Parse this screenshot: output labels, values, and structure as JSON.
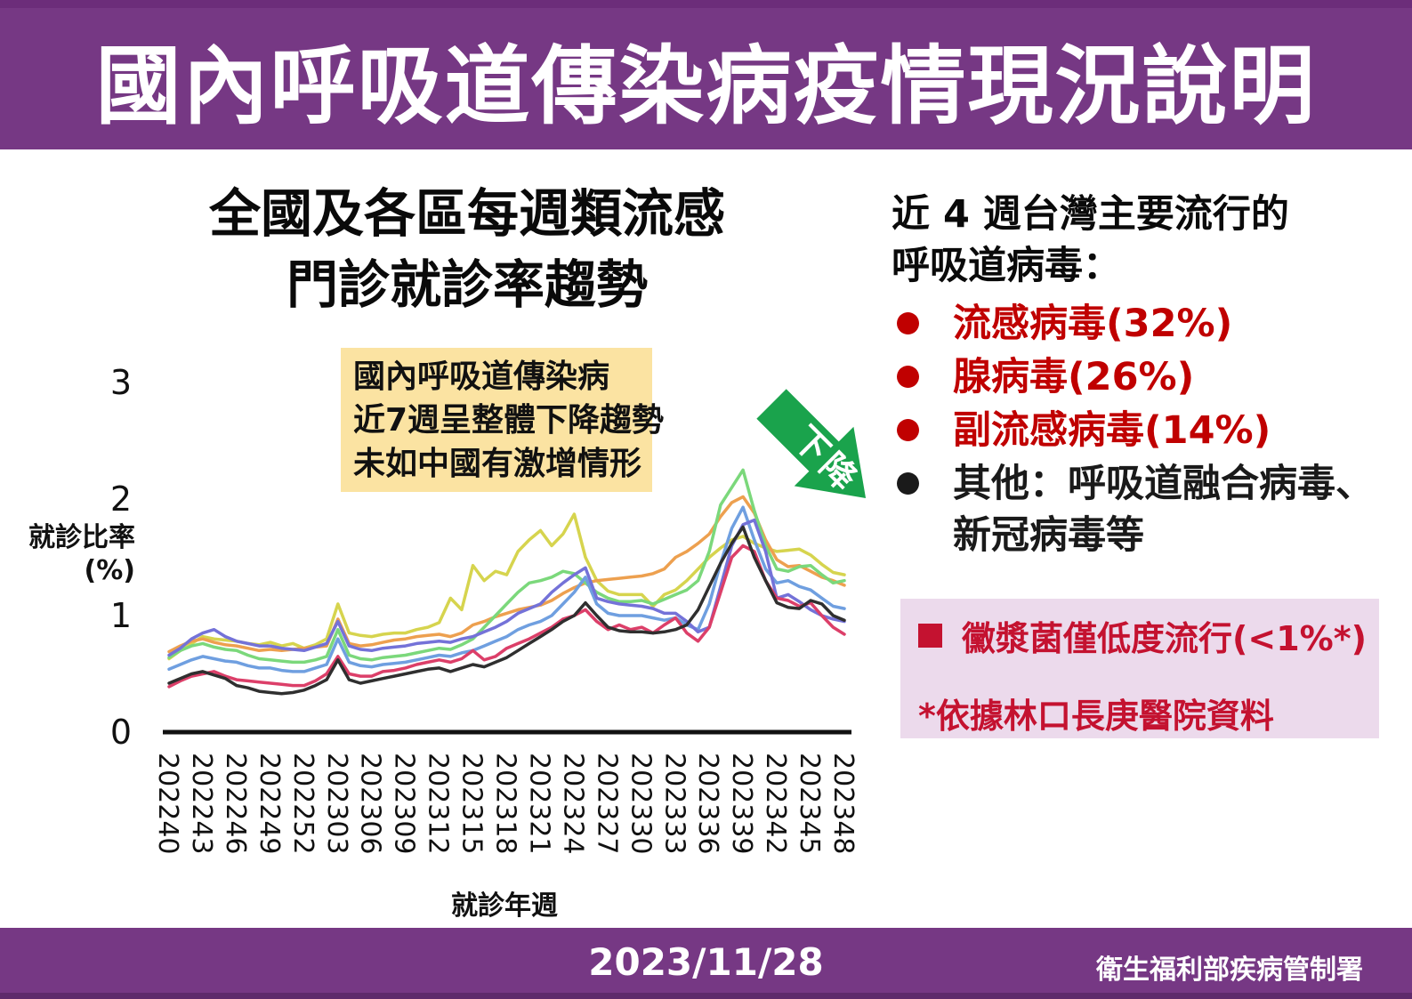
{
  "header": {
    "title": "國內呼吸道傳染病疫情現況說明"
  },
  "chart_section": {
    "title_line1": "全國及各區每週類流感",
    "title_line2": "門診就診率趨勢",
    "y_axis_title_line1": "就診比率",
    "y_axis_title_line2": "(%)",
    "annotation": {
      "line1": "國內呼吸道傳染病",
      "line2": "近7週呈整體下降趨勢",
      "line3": "未如中國有激增情形",
      "bg_color": "#fbe3a2"
    },
    "arrow_label": "下降",
    "arrow_color": "#1aa34c"
  },
  "right_panel": {
    "heading_line1": "近 4 週台灣主要流行的",
    "heading_line2": "呼吸道病毒：",
    "bullets": [
      {
        "label": "流感病毒(32%)",
        "color": "#c00000",
        "dot_color": "#c00000"
      },
      {
        "label": "腺病毒(26%)",
        "color": "#c00000",
        "dot_color": "#c00000"
      },
      {
        "label": "副流感病毒(14%)",
        "color": "#c00000",
        "dot_color": "#c00000"
      },
      {
        "label": "其他：呼吸道融合病毒、",
        "label_line2": "新冠病毒等",
        "color": "#1a1a1a",
        "dot_color": "#1a1a1a"
      }
    ],
    "note_box": {
      "line1": "黴漿菌僅低度流行(<1%*)",
      "line2": "*依據林口長庚醫院資料",
      "text_color": "#c41230",
      "bg_color": "#ecdaec"
    }
  },
  "footer": {
    "date": "2023/11/28",
    "agency": "衛生福利部疾病管制署"
  },
  "chart_data": {
    "type": "line",
    "title": "全國及各區每週類流感門診就診率趨勢",
    "xlabel": "就診年週",
    "ylabel": "就診比率(%)",
    "ylim": [
      0,
      3
    ],
    "yticks": [
      0,
      1,
      2,
      3
    ],
    "grid": false,
    "legend_position": "none",
    "x_tick_step": 3,
    "x": [
      "202240",
      "202241",
      "202242",
      "202243",
      "202244",
      "202245",
      "202246",
      "202247",
      "202248",
      "202249",
      "202250",
      "202251",
      "202252",
      "202301",
      "202302",
      "202303",
      "202304",
      "202305",
      "202306",
      "202307",
      "202308",
      "202309",
      "202310",
      "202311",
      "202312",
      "202313",
      "202314",
      "202315",
      "202316",
      "202317",
      "202318",
      "202319",
      "202320",
      "202321",
      "202322",
      "202323",
      "202324",
      "202325",
      "202326",
      "202327",
      "202328",
      "202329",
      "202330",
      "202331",
      "202332",
      "202333",
      "202334",
      "202335",
      "202336",
      "202337",
      "202338",
      "202339",
      "202340",
      "202341",
      "202342",
      "202343",
      "202344",
      "202345",
      "202346",
      "202347",
      "202348"
    ],
    "x_tick_labels": [
      "202240",
      "202243",
      "202246",
      "202249",
      "202252",
      "202303",
      "202306",
      "202309",
      "202312",
      "202315",
      "202318",
      "202321",
      "202324",
      "202327",
      "202330",
      "202333",
      "202336",
      "202339",
      "202342",
      "202345",
      "202348"
    ],
    "series": [
      {
        "name": "line-yellow",
        "color": "#d6d44e",
        "values": [
          0.63,
          0.7,
          0.76,
          0.82,
          0.8,
          0.79,
          0.78,
          0.76,
          0.75,
          0.77,
          0.74,
          0.76,
          0.72,
          0.75,
          0.8,
          1.1,
          0.85,
          0.83,
          0.82,
          0.84,
          0.85,
          0.85,
          0.88,
          0.9,
          0.94,
          1.15,
          1.05,
          1.43,
          1.3,
          1.38,
          1.35,
          1.55,
          1.65,
          1.73,
          1.6,
          1.7,
          1.87,
          1.5,
          1.3,
          1.21,
          1.18,
          1.18,
          1.18,
          1.08,
          1.18,
          1.22,
          1.3,
          1.4,
          1.5,
          1.58,
          1.65,
          1.68,
          1.62,
          1.58,
          1.55,
          1.56,
          1.57,
          1.52,
          1.44,
          1.37,
          1.35
        ]
      },
      {
        "name": "line-orange",
        "color": "#eda04f",
        "values": [
          0.69,
          0.74,
          0.78,
          0.8,
          0.77,
          0.75,
          0.74,
          0.72,
          0.7,
          0.71,
          0.7,
          0.71,
          0.72,
          0.73,
          0.74,
          0.97,
          0.76,
          0.74,
          0.75,
          0.77,
          0.79,
          0.8,
          0.82,
          0.83,
          0.84,
          0.82,
          0.85,
          0.92,
          0.95,
          0.99,
          1.02,
          1.05,
          1.07,
          1.09,
          1.13,
          1.19,
          1.24,
          1.28,
          1.3,
          1.31,
          1.32,
          1.33,
          1.34,
          1.36,
          1.4,
          1.5,
          1.55,
          1.62,
          1.7,
          1.85,
          1.97,
          2.02,
          1.88,
          1.65,
          1.48,
          1.42,
          1.43,
          1.38,
          1.33,
          1.3,
          1.26
        ]
      },
      {
        "name": "line-green",
        "color": "#7bd87b",
        "values": [
          0.64,
          0.7,
          0.74,
          0.76,
          0.73,
          0.71,
          0.7,
          0.66,
          0.63,
          0.62,
          0.61,
          0.6,
          0.6,
          0.62,
          0.65,
          0.88,
          0.66,
          0.63,
          0.62,
          0.64,
          0.65,
          0.66,
          0.68,
          0.7,
          0.72,
          0.71,
          0.75,
          0.8,
          0.9,
          1.0,
          1.1,
          1.2,
          1.28,
          1.3,
          1.33,
          1.38,
          1.36,
          1.28,
          1.2,
          1.15,
          1.12,
          1.12,
          1.13,
          1.1,
          1.14,
          1.18,
          1.22,
          1.3,
          1.55,
          1.95,
          2.1,
          2.25,
          1.9,
          1.6,
          1.4,
          1.38,
          1.42,
          1.43,
          1.35,
          1.28,
          1.3
        ]
      },
      {
        "name": "line-lightblue",
        "color": "#6f9fe0",
        "values": [
          0.54,
          0.58,
          0.62,
          0.65,
          0.63,
          0.61,
          0.6,
          0.57,
          0.55,
          0.55,
          0.53,
          0.52,
          0.52,
          0.55,
          0.58,
          0.8,
          0.6,
          0.57,
          0.56,
          0.58,
          0.59,
          0.6,
          0.62,
          0.64,
          0.66,
          0.65,
          0.68,
          0.7,
          0.74,
          0.78,
          0.82,
          0.88,
          0.92,
          0.95,
          1.0,
          1.1,
          1.2,
          1.33,
          1.1,
          1.02,
          1.0,
          1.0,
          1.0,
          0.98,
          0.96,
          0.98,
          0.92,
          0.88,
          1.1,
          1.45,
          1.75,
          1.93,
          1.65,
          1.4,
          1.28,
          1.3,
          1.25,
          1.22,
          1.15,
          1.08,
          1.06
        ]
      },
      {
        "name": "line-blueviolet",
        "color": "#7472d8",
        "values": [
          0.66,
          0.72,
          0.8,
          0.85,
          0.88,
          0.82,
          0.78,
          0.76,
          0.74,
          0.74,
          0.72,
          0.71,
          0.7,
          0.73,
          0.76,
          0.95,
          0.74,
          0.71,
          0.7,
          0.72,
          0.73,
          0.74,
          0.76,
          0.77,
          0.78,
          0.77,
          0.8,
          0.82,
          0.86,
          0.9,
          0.95,
          1.02,
          1.06,
          1.1,
          1.2,
          1.28,
          1.35,
          1.41,
          1.15,
          1.12,
          1.1,
          1.09,
          1.08,
          1.06,
          1.02,
          1.02,
          0.95,
          0.86,
          0.9,
          1.25,
          1.6,
          1.78,
          1.82,
          1.55,
          1.15,
          1.18,
          1.12,
          1.05,
          1.0,
          0.97,
          0.95
        ]
      },
      {
        "name": "line-red",
        "color": "#dc3f69",
        "values": [
          0.39,
          0.44,
          0.48,
          0.5,
          0.52,
          0.48,
          0.45,
          0.44,
          0.43,
          0.42,
          0.41,
          0.4,
          0.4,
          0.44,
          0.5,
          0.65,
          0.5,
          0.48,
          0.48,
          0.52,
          0.53,
          0.55,
          0.58,
          0.6,
          0.62,
          0.6,
          0.63,
          0.7,
          0.62,
          0.65,
          0.72,
          0.76,
          0.8,
          0.85,
          0.9,
          0.97,
          1.0,
          1.05,
          0.95,
          0.88,
          0.92,
          0.88,
          0.9,
          0.85,
          0.92,
          0.98,
          0.85,
          0.78,
          0.9,
          1.2,
          1.5,
          1.6,
          1.55,
          1.3,
          1.15,
          1.13,
          1.08,
          1.11,
          1.0,
          0.9,
          0.84
        ]
      },
      {
        "name": "line-black",
        "color": "#2f2f2f",
        "values": [
          0.42,
          0.46,
          0.5,
          0.52,
          0.49,
          0.46,
          0.4,
          0.38,
          0.35,
          0.34,
          0.33,
          0.34,
          0.36,
          0.4,
          0.45,
          0.62,
          0.45,
          0.42,
          0.44,
          0.46,
          0.48,
          0.5,
          0.52,
          0.54,
          0.55,
          0.52,
          0.55,
          0.58,
          0.56,
          0.6,
          0.64,
          0.7,
          0.76,
          0.82,
          0.88,
          0.95,
          1.0,
          1.11,
          1.0,
          0.9,
          0.87,
          0.86,
          0.86,
          0.85,
          0.86,
          0.88,
          0.92,
          1.05,
          1.25,
          1.45,
          1.62,
          1.76,
          1.5,
          1.3,
          1.11,
          1.07,
          1.06,
          1.13,
          1.1,
          1.0,
          0.96
        ]
      }
    ]
  }
}
